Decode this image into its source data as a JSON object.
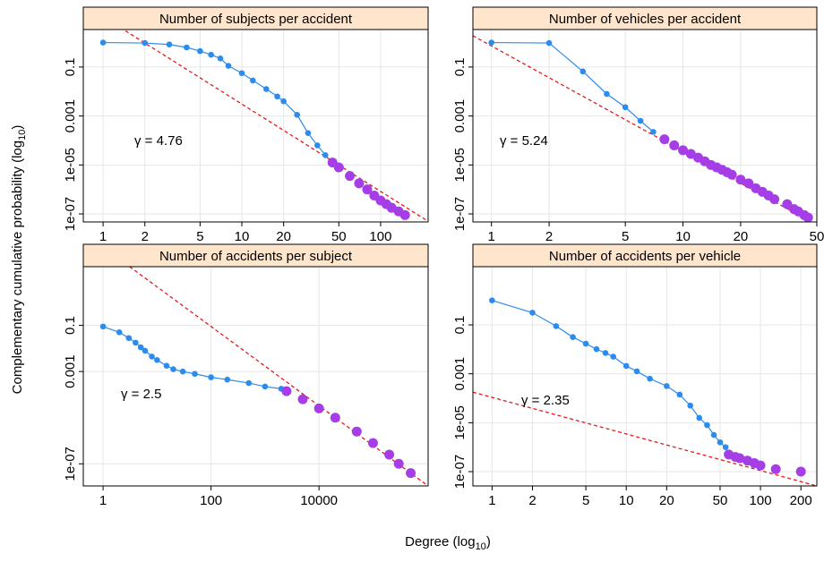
{
  "figure": {
    "ylabel": "Complementary cumulative probability (log",
    "ylabel_sub": "10",
    "ylabel_end": ")",
    "xlabel": "Degree (log",
    "xlabel_sub": "10",
    "xlabel_end": ")"
  },
  "chart_data": [
    {
      "type": "line",
      "title": "Number of subjects per accident",
      "annotation": "γ = 4.76",
      "xlog": true,
      "ylog": true,
      "grid": true,
      "xlim": [
        0.72,
        220
      ],
      "ylim": [
        4.7e-08,
        3.4
      ],
      "xticks": [
        1,
        2,
        5,
        10,
        20,
        50,
        100
      ],
      "yticks": [
        0.1,
        0.001,
        {
          "value": 1e-05,
          "label": "1e-05"
        },
        {
          "value": 1e-07,
          "label": "1e-07"
        }
      ],
      "series": [
        {
          "color": "#2b8cee",
          "x": [
            1,
            2,
            3,
            4,
            5,
            6,
            7,
            8,
            10,
            12,
            15,
            18,
            20,
            25,
            30,
            35,
            40
          ],
          "values": [
            1,
            0.955,
            0.832,
            0.631,
            0.447,
            0.316,
            0.224,
            0.112,
            0.0562,
            0.0282,
            0.0126,
            0.0063,
            0.00398,
            0.00112,
            0.0002,
            6.31e-05,
            2.51e-05
          ]
        },
        {
          "color": "#a63ee8",
          "x": [
            45,
            50,
            60,
            70,
            80,
            90,
            100,
            110,
            120,
            135,
            150
          ],
          "values": [
            1.26e-05,
            7.94e-06,
            3.55e-06,
            1.78e-06,
            1e-06,
            5.62e-07,
            3.55e-07,
            2.51e-07,
            1.78e-07,
            1.26e-07,
            8.91e-08
          ]
        }
      ],
      "fit": {
        "color": "#e41a1c",
        "x": [
          1.45,
          220
        ],
        "values": [
          3,
          5e-08
        ]
      }
    },
    {
      "type": "line",
      "title": "Number of vehicles per accident",
      "annotation": "γ = 5.24",
      "xlog": true,
      "ylog": true,
      "grid": true,
      "xlim": [
        0.8,
        50
      ],
      "ylim": [
        4.7e-08,
        3.4
      ],
      "xticks": [
        1,
        2,
        5,
        10,
        20,
        50
      ],
      "yticks": [
        0.1,
        0.001,
        {
          "value": 1e-05,
          "label": "1e-05"
        },
        {
          "value": 1e-07,
          "label": "1e-07"
        }
      ],
      "series": [
        {
          "color": "#2b8cee",
          "x": [
            1,
            2,
            3,
            4,
            5,
            6,
            7
          ],
          "values": [
            1,
            0.955,
            0.0661,
            0.00794,
            0.00229,
            0.000631,
            0.000224
          ]
        },
        {
          "color": "#a63ee8",
          "x": [
            8,
            9,
            10,
            11,
            12,
            13,
            14,
            15,
            16,
            17,
            18,
            20,
            22,
            24,
            26,
            28,
            30,
            35,
            38,
            40,
            43,
            45
          ],
          "values": [
            0.000112,
            6.31e-05,
            3.98e-05,
            2.82e-05,
            2e-05,
            1.41e-05,
            1e-05,
            7.94e-06,
            6.31e-06,
            5.01e-06,
            3.98e-06,
            2.51e-06,
            1.78e-06,
            1.12e-06,
            7.94e-07,
            5.62e-07,
            3.98e-07,
            2.51e-07,
            1.58e-07,
            1.26e-07,
            8.91e-08,
            7.08e-08
          ]
        }
      ],
      "fit": {
        "color": "#e41a1c",
        "x": [
          0.8,
          46
        ],
        "values": [
          1.9,
          5e-08
        ]
      }
    },
    {
      "type": "line",
      "title": "Number of accidents per subject",
      "annotation": "γ = 2.5",
      "xlog": true,
      "ylog": true,
      "grid": true,
      "xlim": [
        0.43,
        1050000
      ],
      "ylim": [
        1.1e-08,
        35
      ],
      "xticks": [
        1,
        100,
        10000
      ],
      "yticks": [
        0.1,
        0.001,
        {
          "value": 1e-07,
          "label": "1e-07"
        }
      ],
      "series": [
        {
          "color": "#2b8cee",
          "x": [
            1,
            2,
            3,
            4,
            5,
            6,
            8,
            10,
            15,
            20,
            30,
            50,
            100,
            200,
            500,
            1000,
            2000
          ],
          "values": [
            0.0891,
            0.0501,
            0.0282,
            0.0178,
            0.0112,
            0.00794,
            0.00447,
            0.00316,
            0.00178,
            0.00126,
            0.001,
            0.000794,
            0.000562,
            0.000447,
            0.000316,
            0.000224,
            0.000178
          ]
        },
        {
          "color": "#a63ee8",
          "x": [
            2500,
            5000,
            10000,
            20000,
            50000,
            100000,
            200000,
            300000,
            500000
          ],
          "values": [
            0.000141,
            6.31e-05,
            2.51e-05,
            1e-05,
            2.51e-06,
            7.94e-07,
            2.51e-07,
            1e-07,
            3.98e-08
          ]
        }
      ],
      "fit": {
        "color": "#e41a1c",
        "x": [
          3.1,
          1050000
        ],
        "values": [
          35,
          1.1e-08
        ]
      }
    },
    {
      "type": "line",
      "title": "Number of accidents per vehicle",
      "annotation": "γ = 2.35",
      "xlog": true,
      "ylog": true,
      "grid": true,
      "xlim": [
        0.72,
        263
      ],
      "ylim": [
        2.6e-08,
        24
      ],
      "xticks": [
        1,
        2,
        5,
        10,
        20,
        50,
        100,
        200
      ],
      "yticks": [
        0.1,
        0.001,
        {
          "value": 1e-05,
          "label": "1e-05"
        },
        {
          "value": 1e-07,
          "label": "1e-07"
        }
      ],
      "series": [
        {
          "color": "#2b8cee",
          "x": [
            1,
            2,
            3,
            4,
            5,
            6,
            7,
            8,
            10,
            12,
            15,
            20,
            25,
            30,
            35,
            40,
            45,
            50,
            55
          ],
          "values": [
            1,
            0.316,
            0.0891,
            0.0316,
            0.017,
            0.0102,
            0.00708,
            0.00501,
            0.00209,
            0.00126,
            0.000631,
            0.000316,
            0.000141,
            5.01e-05,
            1.58e-05,
            7.94e-06,
            3.16e-06,
            1.58e-06,
            1e-06
          ]
        },
        {
          "color": "#a63ee8",
          "x": [
            58,
            65,
            70,
            80,
            90,
            100,
            130,
            200
          ],
          "values": [
            5.01e-07,
            3.98e-07,
            3.55e-07,
            2.82e-07,
            2.24e-07,
            1.78e-07,
            1.26e-07,
            1e-07
          ]
        }
      ],
      "fit": {
        "color": "#e41a1c",
        "x": [
          0.72,
          263
        ],
        "values": [
          0.000178,
          2.6e-08
        ]
      }
    }
  ]
}
